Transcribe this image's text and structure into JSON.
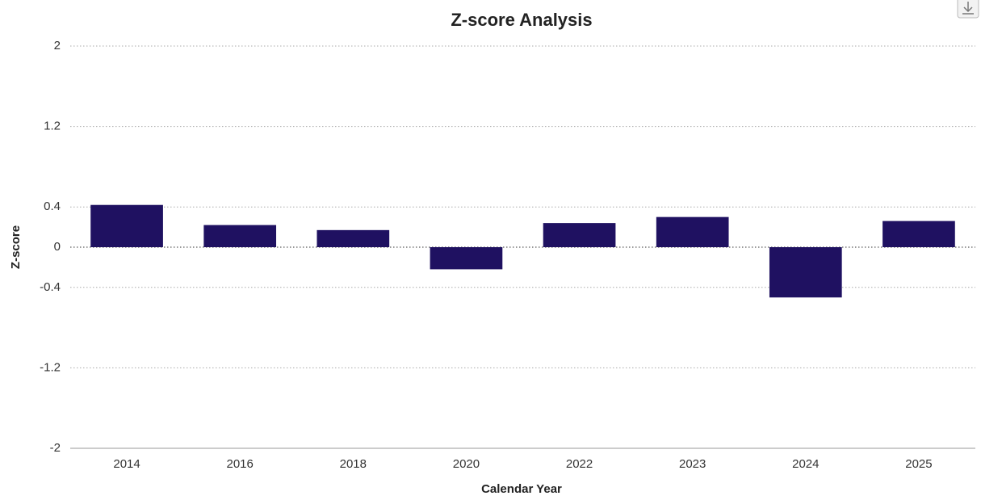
{
  "chart_data": {
    "type": "bar",
    "title": "Z-score Analysis",
    "x_label": "Calendar Year",
    "y_label": "Z-score",
    "categories": [
      "2014",
      "2016",
      "2018",
      "2020",
      "2022",
      "2023",
      "2024",
      "2025"
    ],
    "values": [
      0.42,
      0.22,
      0.17,
      -0.22,
      0.24,
      0.3,
      -0.5,
      0.26
    ],
    "color": "#1f1161",
    "ylim": [
      -2,
      2
    ],
    "yticks": [
      -2,
      -1.2,
      -0.4,
      0,
      0.4,
      1.2,
      2
    ],
    "grid": true
  }
}
